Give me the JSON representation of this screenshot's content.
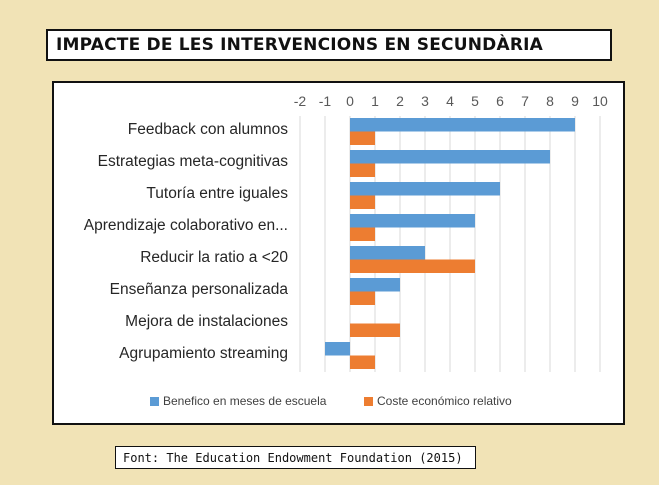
{
  "title": "IMPACTE DE LES INTERVENCIONS EN SECUNDÀRIA",
  "source": "Font: The Education Endowment Foundation (2015)",
  "chart_data": {
    "type": "bar",
    "orientation": "horizontal",
    "categories": [
      "Feedback con alumnos",
      "Estrategias meta-cognitivas",
      "Tutoría entre iguales",
      "Aprendizaje colaborativo en...",
      "Reducir la ratio a <20",
      "Enseñanza personalizada",
      "Mejora de instalaciones",
      "Agrupamiento streaming"
    ],
    "series": [
      {
        "name": "Benefico en meses de escuela",
        "color": "#5b9bd5",
        "values": [
          9,
          8,
          6,
          5,
          3,
          2,
          0,
          -1
        ]
      },
      {
        "name": "Coste económico relativo",
        "color": "#ed7d31",
        "values": [
          1,
          1,
          1,
          1,
          5,
          1,
          2,
          1
        ]
      }
    ],
    "xlim": [
      -2,
      10
    ],
    "xticks": [
      -2,
      -1,
      0,
      1,
      2,
      3,
      4,
      5,
      6,
      7,
      8,
      9,
      10
    ],
    "grid": true,
    "legend_position": "bottom"
  }
}
